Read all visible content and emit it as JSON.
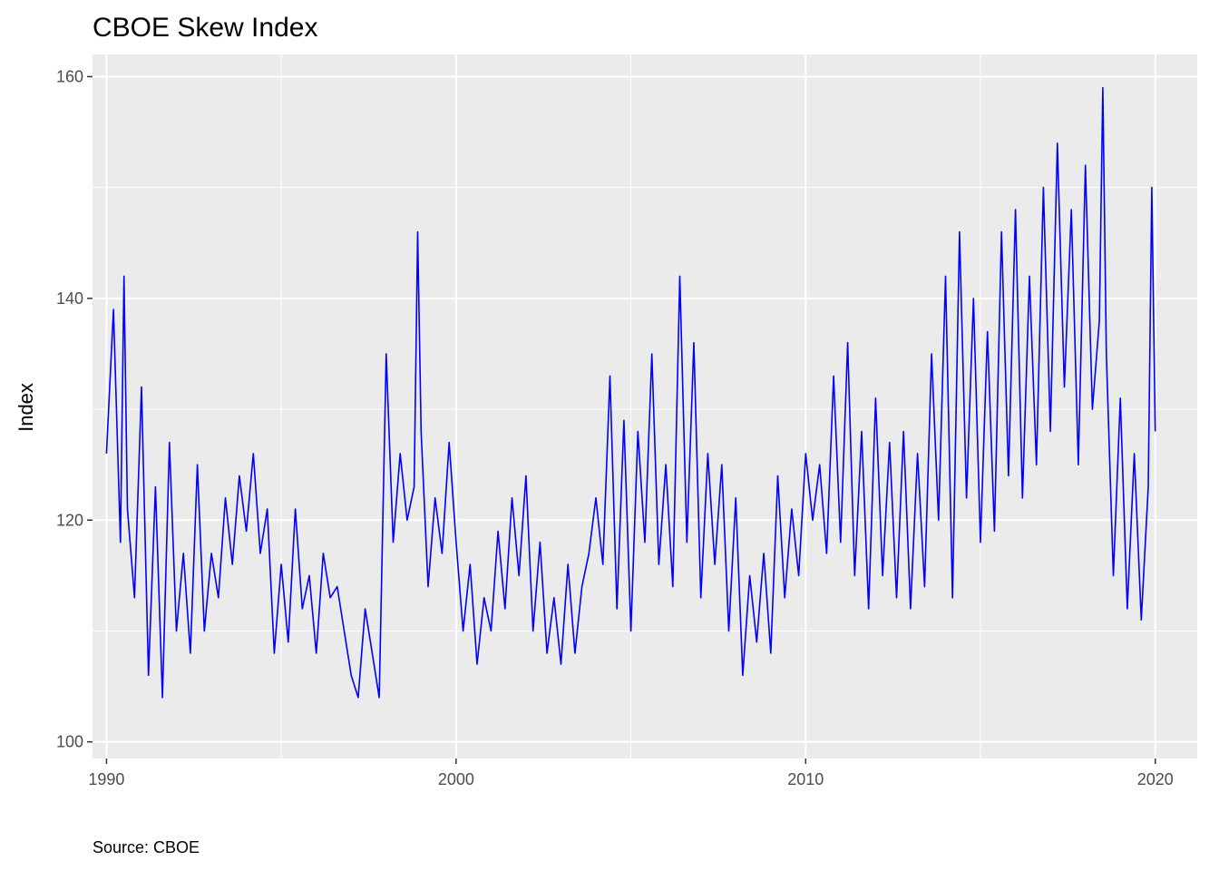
{
  "chart_data": {
    "type": "line",
    "title": "CBOE Skew Index",
    "xlabel": "",
    "ylabel": "Index",
    "caption": "Source: CBOE",
    "xlim": [
      1989.6,
      2021.2
    ],
    "ylim": [
      98.5,
      162
    ],
    "x_ticks": [
      1990,
      2000,
      2010,
      2020
    ],
    "y_ticks": [
      100,
      120,
      140,
      160
    ],
    "grid": true,
    "colors": {
      "panel": "#ebebeb",
      "grid": "#ffffff",
      "line": "#0000ff"
    },
    "series": [
      {
        "name": "",
        "x": [
          1990.0,
          1990.2,
          1990.4,
          1990.5,
          1990.6,
          1990.8,
          1991.0,
          1991.2,
          1991.4,
          1991.6,
          1991.8,
          1992.0,
          1992.2,
          1992.4,
          1992.6,
          1992.8,
          1993.0,
          1993.2,
          1993.4,
          1993.6,
          1993.8,
          1994.0,
          1994.2,
          1994.4,
          1994.6,
          1994.8,
          1995.0,
          1995.2,
          1995.4,
          1995.6,
          1995.8,
          1996.0,
          1996.2,
          1996.4,
          1996.6,
          1996.8,
          1997.0,
          1997.2,
          1997.4,
          1997.6,
          1997.8,
          1998.0,
          1998.2,
          1998.4,
          1998.6,
          1998.8,
          1998.9,
          1999.0,
          1999.2,
          1999.4,
          1999.6,
          1999.8,
          2000.0,
          2000.2,
          2000.4,
          2000.6,
          2000.8,
          2001.0,
          2001.2,
          2001.4,
          2001.6,
          2001.8,
          2002.0,
          2002.2,
          2002.4,
          2002.6,
          2002.8,
          2003.0,
          2003.2,
          2003.4,
          2003.6,
          2003.8,
          2004.0,
          2004.2,
          2004.4,
          2004.6,
          2004.8,
          2005.0,
          2005.2,
          2005.4,
          2005.6,
          2005.8,
          2006.0,
          2006.2,
          2006.4,
          2006.6,
          2006.8,
          2007.0,
          2007.2,
          2007.4,
          2007.6,
          2007.8,
          2008.0,
          2008.2,
          2008.4,
          2008.6,
          2008.8,
          2009.0,
          2009.2,
          2009.4,
          2009.6,
          2009.8,
          2010.0,
          2010.2,
          2010.4,
          2010.6,
          2010.8,
          2011.0,
          2011.2,
          2011.4,
          2011.6,
          2011.8,
          2012.0,
          2012.2,
          2012.4,
          2012.6,
          2012.8,
          2013.0,
          2013.2,
          2013.4,
          2013.6,
          2013.8,
          2014.0,
          2014.2,
          2014.4,
          2014.6,
          2014.8,
          2015.0,
          2015.2,
          2015.4,
          2015.6,
          2015.8,
          2016.0,
          2016.2,
          2016.4,
          2016.6,
          2016.8,
          2017.0,
          2017.2,
          2017.4,
          2017.6,
          2017.8,
          2018.0,
          2018.2,
          2018.4,
          2018.5,
          2018.6,
          2018.8,
          2019.0,
          2019.2,
          2019.4,
          2019.6,
          2019.8,
          2019.9,
          2020.0
        ],
        "y": [
          126,
          139,
          118,
          142,
          121,
          113,
          132,
          106,
          123,
          104,
          127,
          110,
          117,
          108,
          125,
          110,
          117,
          113,
          122,
          116,
          124,
          119,
          126,
          117,
          121,
          108,
          116,
          109,
          121,
          112,
          115,
          108,
          117,
          113,
          114,
          110,
          106,
          104,
          112,
          108,
          104,
          135,
          118,
          126,
          120,
          123,
          146,
          128,
          114,
          122,
          117,
          127,
          118,
          110,
          116,
          107,
          113,
          110,
          119,
          112,
          122,
          115,
          124,
          110,
          118,
          108,
          113,
          107,
          116,
          108,
          114,
          117,
          122,
          116,
          133,
          112,
          129,
          110,
          128,
          118,
          135,
          116,
          125,
          114,
          142,
          118,
          136,
          113,
          126,
          116,
          125,
          110,
          122,
          106,
          115,
          109,
          117,
          108,
          124,
          113,
          121,
          115,
          126,
          120,
          125,
          117,
          133,
          118,
          136,
          115,
          128,
          112,
          131,
          115,
          127,
          113,
          128,
          112,
          126,
          114,
          135,
          120,
          142,
          113,
          146,
          122,
          140,
          118,
          137,
          119,
          146,
          124,
          148,
          122,
          142,
          125,
          150,
          128,
          154,
          132,
          148,
          125,
          152,
          130,
          138,
          159,
          135,
          115,
          131,
          112,
          126,
          111,
          123,
          150,
          128
        ]
      }
    ]
  }
}
